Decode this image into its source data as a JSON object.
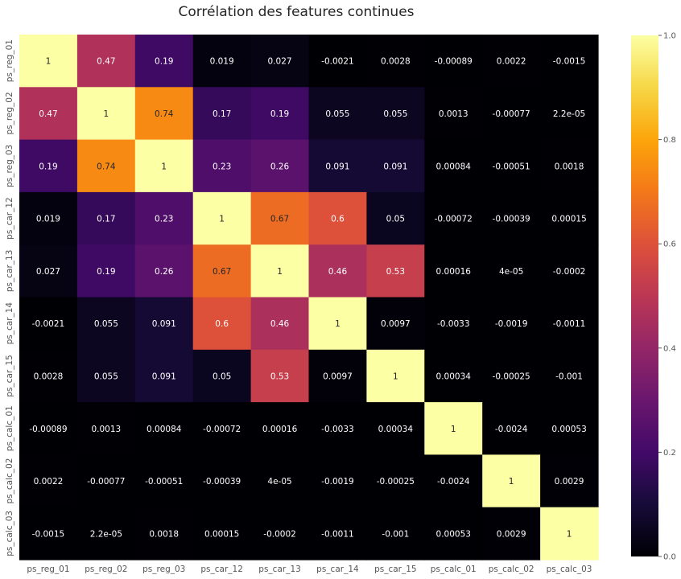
{
  "chart_data": {
    "type": "heatmap",
    "title": "Corrélation des features continues",
    "variables": [
      "ps_reg_01",
      "ps_reg_02",
      "ps_reg_03",
      "ps_car_12",
      "ps_car_13",
      "ps_car_14",
      "ps_car_15",
      "ps_calc_01",
      "ps_calc_02",
      "ps_calc_03"
    ],
    "matrix": [
      [
        1,
        0.47,
        0.19,
        0.019,
        0.027,
        -0.0021,
        0.0028,
        -0.00089,
        0.0022,
        -0.0015
      ],
      [
        0.47,
        1,
        0.74,
        0.17,
        0.19,
        0.055,
        0.055,
        0.0013,
        -0.00077,
        2.2e-05
      ],
      [
        0.19,
        0.74,
        1,
        0.23,
        0.26,
        0.091,
        0.091,
        0.00084,
        -0.00051,
        0.0018
      ],
      [
        0.019,
        0.17,
        0.23,
        1,
        0.67,
        0.6,
        0.05,
        -0.00072,
        -0.00039,
        0.00015
      ],
      [
        0.027,
        0.19,
        0.26,
        0.67,
        1,
        0.46,
        0.53,
        0.00016,
        4e-05,
        -0.0002
      ],
      [
        -0.0021,
        0.055,
        0.091,
        0.6,
        0.46,
        1,
        0.0097,
        -0.0033,
        -0.0019,
        -0.0011
      ],
      [
        0.0028,
        0.055,
        0.091,
        0.05,
        0.53,
        0.0097,
        1,
        0.00034,
        -0.00025,
        -0.001
      ],
      [
        -0.00089,
        0.0013,
        0.00084,
        -0.00072,
        0.00016,
        -0.0033,
        0.00034,
        1,
        -0.0024,
        0.00053
      ],
      [
        0.0022,
        -0.00077,
        -0.00051,
        -0.00039,
        4e-05,
        -0.0019,
        -0.00025,
        -0.0024,
        1,
        0.0029
      ],
      [
        -0.0015,
        2.2e-05,
        0.0018,
        0.00015,
        -0.0002,
        -0.0011,
        -0.001,
        0.00053,
        0.0029,
        1
      ]
    ],
    "cell_labels": [
      [
        "1",
        "0.47",
        "0.19",
        "0.019",
        "0.027",
        "-0.0021",
        "0.0028",
        "-0.00089",
        "0.0022",
        "-0.0015"
      ],
      [
        "0.47",
        "1",
        "0.74",
        "0.17",
        "0.19",
        "0.055",
        "0.055",
        "0.0013",
        "-0.00077",
        "2.2e-05"
      ],
      [
        "0.19",
        "0.74",
        "1",
        "0.23",
        "0.26",
        "0.091",
        "0.091",
        "0.00084",
        "-0.00051",
        "0.0018"
      ],
      [
        "0.019",
        "0.17",
        "0.23",
        "1",
        "0.67",
        "0.6",
        "0.05",
        "-0.00072",
        "-0.00039",
        "0.00015"
      ],
      [
        "0.027",
        "0.19",
        "0.26",
        "0.67",
        "1",
        "0.46",
        "0.53",
        "0.00016",
        "4e-05",
        "-0.0002"
      ],
      [
        "-0.0021",
        "0.055",
        "0.091",
        "0.6",
        "0.46",
        "1",
        "0.0097",
        "-0.0033",
        "-0.0019",
        "-0.0011"
      ],
      [
        "0.0028",
        "0.055",
        "0.091",
        "0.05",
        "0.53",
        "0.0097",
        "1",
        "0.00034",
        "-0.00025",
        "-0.001"
      ],
      [
        "-0.00089",
        "0.0013",
        "0.00084",
        "-0.00072",
        "0.00016",
        "-0.0033",
        "0.00034",
        "1",
        "-0.0024",
        "0.00053"
      ],
      [
        "0.0022",
        "-0.00077",
        "-0.00051",
        "-0.00039",
        "4e-05",
        "-0.0019",
        "-0.00025",
        "-0.0024",
        "1",
        "0.0029"
      ],
      [
        "-0.0015",
        "2.2e-05",
        "0.0018",
        "0.00015",
        "-0.0002",
        "-0.0011",
        "-0.001",
        "0.00053",
        "0.0029",
        "1"
      ]
    ],
    "colormap": "inferno",
    "vmin": 0.0,
    "vmax": 1.0,
    "colorbar_ticks": [
      "0.0",
      "0.2",
      "0.4",
      "0.6",
      "0.8",
      "1.0"
    ],
    "colorbar_tick_values": [
      0.0,
      0.2,
      0.4,
      0.6,
      0.8,
      1.0
    ],
    "colors": {
      "text_light": "#ffffff",
      "text_dark": "#262626",
      "tick_color": "#555555"
    }
  }
}
